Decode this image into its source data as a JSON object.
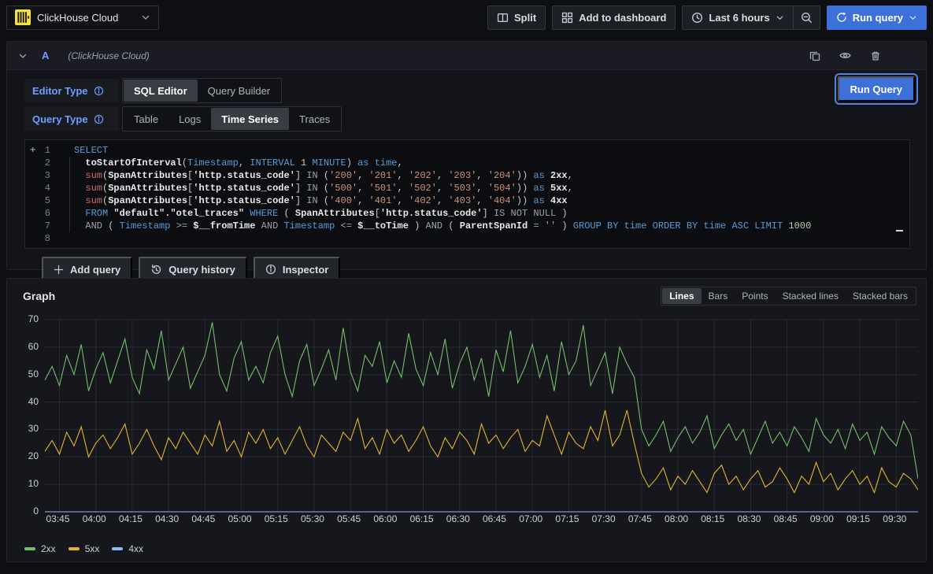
{
  "topbar": {
    "datasource_name": "ClickHouse Cloud",
    "split_label": "Split",
    "add_to_dashboard_label": "Add to dashboard",
    "time_range_label": "Last 6 hours",
    "run_query_label": "Run query"
  },
  "query_editor": {
    "ref_id": "A",
    "datasource_hint": "(ClickHouse Cloud)",
    "editor_type_label": "Editor Type",
    "editor_type_options": [
      "SQL Editor",
      "Query Builder"
    ],
    "editor_type_selected": "SQL Editor",
    "query_type_label": "Query Type",
    "query_type_options": [
      "Table",
      "Logs",
      "Time Series",
      "Traces"
    ],
    "query_type_selected": "Time Series",
    "run_query_label": "Run Query",
    "line_numbers": [
      "1",
      "2",
      "3",
      "4",
      "5",
      "6",
      "7",
      "8"
    ],
    "sql_lines": [
      [
        [
          "k",
          "SELECT"
        ]
      ],
      [
        [
          "d",
          "  "
        ],
        [
          "i",
          "toStartOfInterval"
        ],
        [
          "d",
          "("
        ],
        [
          "k",
          "Timestamp"
        ],
        [
          "d",
          ", "
        ],
        [
          "k",
          "INTERVAL"
        ],
        [
          "d",
          " 1 "
        ],
        [
          "k",
          "MINUTE"
        ],
        [
          "d",
          ") "
        ],
        [
          "k",
          "as"
        ],
        [
          "d",
          " "
        ],
        [
          "k",
          "time"
        ],
        [
          "d",
          ","
        ]
      ],
      [
        [
          "d",
          "  "
        ],
        [
          "f",
          "sum"
        ],
        [
          "d",
          "("
        ],
        [
          "i",
          "SpanAttributes"
        ],
        [
          "d",
          "["
        ],
        [
          "i",
          "'http.status_code'"
        ],
        [
          "d",
          "] "
        ],
        [
          "o",
          "IN"
        ],
        [
          "d",
          " ("
        ],
        [
          "s",
          "'200'"
        ],
        [
          "d",
          ", "
        ],
        [
          "s",
          "'201'"
        ],
        [
          "d",
          ", "
        ],
        [
          "s",
          "'202'"
        ],
        [
          "d",
          ", "
        ],
        [
          "s",
          "'203'"
        ],
        [
          "d",
          ", "
        ],
        [
          "s",
          "'204'"
        ],
        [
          "d",
          ")) "
        ],
        [
          "k",
          "as"
        ],
        [
          "d",
          " "
        ],
        [
          "i",
          "2xx"
        ],
        [
          "d",
          ","
        ]
      ],
      [
        [
          "d",
          "  "
        ],
        [
          "f",
          "sum"
        ],
        [
          "d",
          "("
        ],
        [
          "i",
          "SpanAttributes"
        ],
        [
          "d",
          "["
        ],
        [
          "i",
          "'http.status_code'"
        ],
        [
          "d",
          "] "
        ],
        [
          "o",
          "IN"
        ],
        [
          "d",
          " ("
        ],
        [
          "s",
          "'500'"
        ],
        [
          "d",
          ", "
        ],
        [
          "s",
          "'501'"
        ],
        [
          "d",
          ", "
        ],
        [
          "s",
          "'502'"
        ],
        [
          "d",
          ", "
        ],
        [
          "s",
          "'503'"
        ],
        [
          "d",
          ", "
        ],
        [
          "s",
          "'504'"
        ],
        [
          "d",
          ")) "
        ],
        [
          "k",
          "as"
        ],
        [
          "d",
          " "
        ],
        [
          "i",
          "5xx"
        ],
        [
          "d",
          ","
        ]
      ],
      [
        [
          "d",
          "  "
        ],
        [
          "f",
          "sum"
        ],
        [
          "d",
          "("
        ],
        [
          "i",
          "SpanAttributes"
        ],
        [
          "d",
          "["
        ],
        [
          "i",
          "'http.status_code'"
        ],
        [
          "d",
          "] "
        ],
        [
          "o",
          "IN"
        ],
        [
          "d",
          " ("
        ],
        [
          "s",
          "'400'"
        ],
        [
          "d",
          ", "
        ],
        [
          "s",
          "'401'"
        ],
        [
          "d",
          ", "
        ],
        [
          "s",
          "'402'"
        ],
        [
          "d",
          ", "
        ],
        [
          "s",
          "'403'"
        ],
        [
          "d",
          ", "
        ],
        [
          "s",
          "'404'"
        ],
        [
          "d",
          ")) "
        ],
        [
          "k",
          "as"
        ],
        [
          "d",
          " "
        ],
        [
          "i",
          "4xx"
        ]
      ],
      [
        [
          "d",
          "  "
        ],
        [
          "k",
          "FROM"
        ],
        [
          "d",
          " "
        ],
        [
          "i",
          "\"default\".\"otel_traces\""
        ],
        [
          "d",
          " "
        ],
        [
          "k",
          "WHERE"
        ],
        [
          "d",
          " ( "
        ],
        [
          "i",
          "SpanAttributes"
        ],
        [
          "d",
          "["
        ],
        [
          "i",
          "'http.status_code'"
        ],
        [
          "d",
          "] "
        ],
        [
          "o",
          "IS NOT"
        ],
        [
          "d",
          " "
        ],
        [
          "o",
          "NULL"
        ],
        [
          "d",
          " )"
        ]
      ],
      [
        [
          "d",
          "  "
        ],
        [
          "o",
          "AND"
        ],
        [
          "d",
          " ( "
        ],
        [
          "k",
          "Timestamp"
        ],
        [
          "d",
          " "
        ],
        [
          "o",
          ">="
        ],
        [
          "d",
          " "
        ],
        [
          "i",
          "$__fromTime"
        ],
        [
          "d",
          " "
        ],
        [
          "o",
          "AND"
        ],
        [
          "d",
          " "
        ],
        [
          "k",
          "Timestamp"
        ],
        [
          "d",
          " "
        ],
        [
          "o",
          "<="
        ],
        [
          "d",
          " "
        ],
        [
          "i",
          "$__toTime"
        ],
        [
          "d",
          " ) "
        ],
        [
          "o",
          "AND"
        ],
        [
          "d",
          " ( "
        ],
        [
          "i",
          "ParentSpanId"
        ],
        [
          "d",
          " "
        ],
        [
          "o",
          "="
        ],
        [
          "d",
          " "
        ],
        [
          "s",
          "''"
        ],
        [
          "d",
          " ) "
        ],
        [
          "k",
          "GROUP BY"
        ],
        [
          "d",
          " "
        ],
        [
          "k",
          "time"
        ],
        [
          "d",
          " "
        ],
        [
          "k",
          "ORDER BY"
        ],
        [
          "d",
          " "
        ],
        [
          "k",
          "time"
        ],
        [
          "d",
          " "
        ],
        [
          "k",
          "ASC"
        ],
        [
          "d",
          " "
        ],
        [
          "k",
          "LIMIT"
        ],
        [
          "d",
          " "
        ],
        [
          "n",
          "1000"
        ]
      ],
      []
    ]
  },
  "actions": {
    "add_query": "Add query",
    "query_history": "Query history",
    "inspector": "Inspector"
  },
  "graph_panel": {
    "title": "Graph",
    "modes": [
      "Lines",
      "Bars",
      "Points",
      "Stacked lines",
      "Stacked bars"
    ],
    "mode_selected": "Lines"
  },
  "chart_data": {
    "type": "line",
    "title": "Graph",
    "x_start": "03:39",
    "x_step_minutes": 3,
    "x_tick_labels": [
      "03:45",
      "04:00",
      "04:15",
      "04:30",
      "04:45",
      "05:00",
      "05:15",
      "05:30",
      "05:45",
      "06:00",
      "06:15",
      "06:30",
      "06:45",
      "07:00",
      "07:15",
      "07:30",
      "07:45",
      "08:00",
      "08:15",
      "08:30",
      "08:45",
      "09:00",
      "09:15",
      "09:30"
    ],
    "ylim": [
      0,
      70
    ],
    "y_ticks": [
      0,
      10,
      20,
      30,
      40,
      50,
      60,
      70
    ],
    "grid": true,
    "legend_position": "bottom",
    "series": [
      {
        "name": "2xx",
        "color": "#73bf69",
        "values": [
          48,
          53,
          46,
          57,
          50,
          61,
          44,
          52,
          58,
          47,
          55,
          63,
          49,
          43,
          59,
          52,
          66,
          48,
          54,
          60,
          45,
          51,
          57,
          69,
          50,
          44,
          56,
          62,
          48,
          53,
          47,
          58,
          64,
          50,
          42,
          55,
          61,
          46,
          52,
          59,
          48,
          67,
          51,
          44,
          57,
          53,
          62,
          47,
          55,
          49,
          65,
          52,
          46,
          58,
          50,
          63,
          45,
          54,
          60,
          48,
          56,
          42,
          59,
          51,
          66,
          47,
          53,
          61,
          49,
          57,
          44,
          62,
          50,
          55,
          68,
          46,
          52,
          58,
          43,
          60,
          54,
          49,
          30,
          24,
          28,
          33,
          22,
          27,
          31,
          25,
          29,
          35,
          23,
          28,
          32,
          26,
          30,
          21,
          27,
          33,
          25,
          29,
          24,
          31,
          27,
          22,
          34,
          28,
          25,
          30,
          23,
          32,
          26,
          29,
          21,
          31,
          27,
          24,
          33,
          28,
          12
        ]
      },
      {
        "name": "5xx",
        "color": "#e2b52a",
        "values": [
          22,
          26,
          21,
          29,
          24,
          31,
          20,
          25,
          28,
          23,
          27,
          32,
          21,
          25,
          30,
          24,
          19,
          27,
          23,
          29,
          25,
          21,
          28,
          24,
          33,
          22,
          26,
          20,
          29,
          25,
          30,
          23,
          27,
          21,
          26,
          31,
          24,
          20,
          28,
          25,
          22,
          29,
          26,
          34,
          23,
          27,
          21,
          30,
          25,
          28,
          22,
          26,
          31,
          24,
          20,
          27,
          23,
          29,
          26,
          21,
          32,
          25,
          28,
          23,
          27,
          30,
          22,
          26,
          24,
          35,
          28,
          21,
          29,
          25,
          23,
          31,
          26,
          37,
          24,
          28,
          37,
          25,
          14,
          9,
          12,
          16,
          8,
          13,
          10,
          15,
          11,
          7,
          14,
          17,
          10,
          13,
          8,
          12,
          15,
          9,
          11,
          16,
          12,
          7,
          13,
          10,
          18,
          11,
          14,
          8,
          12,
          15,
          10,
          13,
          7,
          16,
          11,
          9,
          14,
          12,
          8
        ]
      },
      {
        "name": "4xx",
        "color": "#8ab8ff",
        "constant": 0,
        "length": 121
      }
    ]
  }
}
